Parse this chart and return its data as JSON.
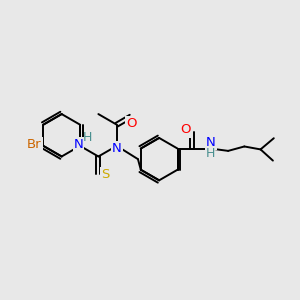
{
  "bg_color": "#e8e8e8",
  "atom_colors": {
    "C": "#000000",
    "N": "#0000ff",
    "O": "#ff0000",
    "S": "#ccaa00",
    "Br": "#cc6600",
    "NH": "#4a9090"
  },
  "bond_color": "#000000",
  "bond_width": 1.4,
  "font_size": 9.5
}
